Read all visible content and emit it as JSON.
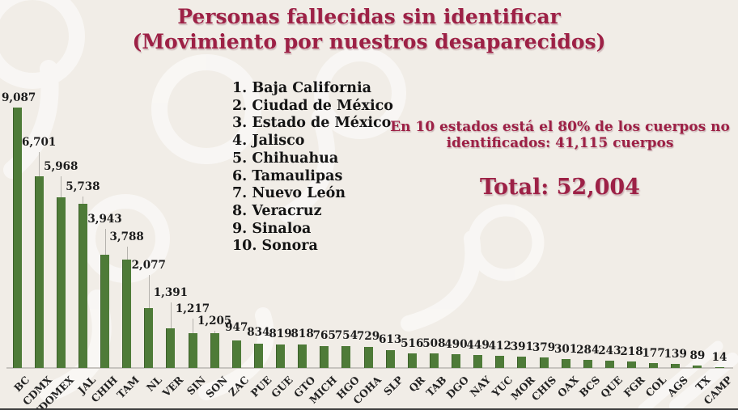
{
  "title": {
    "line1": "Personas fallecidas sin identificar",
    "line2": "(Movimiento por nuestros desaparecidos)"
  },
  "top10": [
    "1. Baja California",
    "2. Ciudad de México",
    "3. Estado de México",
    "4. Jalisco",
    "5. Chihuahua",
    "6. Tamaulipas",
    "7. Nuevo León",
    "8. Veracruz",
    "9. Sinaloa",
    "10. Sonora"
  ],
  "annotation": {
    "line1": "En 10 estados está el 80% de los cuerpos no",
    "line2": "identificados: 41,115 cuerpos"
  },
  "total_label": "Total: 52,004",
  "colors": {
    "accent_maroon": "#9d2146",
    "bar_green": "#4e7b38",
    "background": "#f1ede7",
    "text_black": "#1b1b1b",
    "axis_gray": "#c7c4bf"
  },
  "chart_data": {
    "type": "bar",
    "title": "Personas fallecidas sin identificar",
    "xlabel": "",
    "ylabel": "",
    "ylim": [
      0,
      9087
    ],
    "grid": false,
    "legend": false,
    "bar_color": "#4e7b38",
    "categories": [
      "BC",
      "CDMX",
      "EDOMEX",
      "JAL",
      "CHIH",
      "TAM",
      "NL",
      "VER",
      "SIN",
      "SON",
      "ZAC",
      "PUE",
      "GUE",
      "GTO",
      "MICH",
      "HGO",
      "COHA",
      "SLP",
      "QR",
      "TAB",
      "DGO",
      "NAY",
      "YUC",
      "MOR",
      "CHIS",
      "OAX",
      "BCS",
      "QUE",
      "FGR",
      "COL",
      "AGS",
      "TX",
      "CAMP"
    ],
    "values": [
      9087,
      6701,
      5968,
      5738,
      3943,
      3788,
      2077,
      1391,
      1217,
      1205,
      947,
      834,
      819,
      818,
      765,
      754,
      729,
      613,
      516,
      508,
      490,
      449,
      412,
      391,
      379,
      301,
      284,
      243,
      218,
      177,
      139,
      89,
      14
    ],
    "value_labels": [
      "9,087",
      "6,701",
      "5,968",
      "5,738",
      "3,943",
      "3,788",
      "2,077",
      "1,391",
      "1,217",
      "1,205",
      "947",
      "834",
      "819",
      "818",
      "765",
      "754",
      "729",
      "613",
      "516",
      "508",
      "490",
      "449",
      "412",
      "391",
      "379",
      "301",
      "284",
      "243",
      "218",
      "177",
      "139",
      "89",
      "14"
    ],
    "layout": {
      "label_offsets": [
        4,
        34,
        30,
        13,
        36,
        20,
        45,
        36,
        22,
        7,
        8,
        6,
        5,
        5,
        5,
        5,
        5,
        5,
        4,
        4,
        4,
        4,
        4,
        4,
        4,
        4,
        4,
        4,
        4,
        4,
        4,
        4,
        4
      ],
      "leader_lines": [
        false,
        true,
        true,
        true,
        true,
        true,
        true,
        true,
        true,
        true,
        false,
        false,
        false,
        false,
        false,
        false,
        false,
        false,
        false,
        false,
        false,
        false,
        false,
        false,
        false,
        false,
        false,
        false,
        false,
        false,
        false,
        false,
        false
      ]
    }
  }
}
